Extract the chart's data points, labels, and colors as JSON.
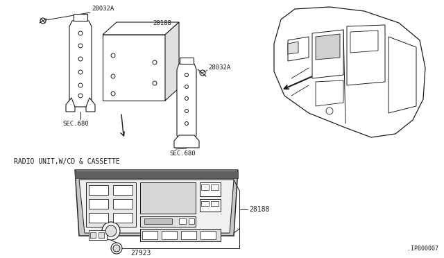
{
  "bg_color": "#ffffff",
  "line_color": "#1a1a1a",
  "figsize": [
    6.4,
    3.72
  ],
  "dpi": 100,
  "labels": {
    "28032A_top": "28032A",
    "28188_top": "28188",
    "28032A_right": "28032A",
    "SEC680_left": "SEC.680",
    "SEC680_bottom": "SEC.680",
    "28188_radio": "28188",
    "27923": "27923",
    "title": "RADIO UNIT,W/CD & CASSETTE",
    "diagram_id": ".IP800007"
  }
}
